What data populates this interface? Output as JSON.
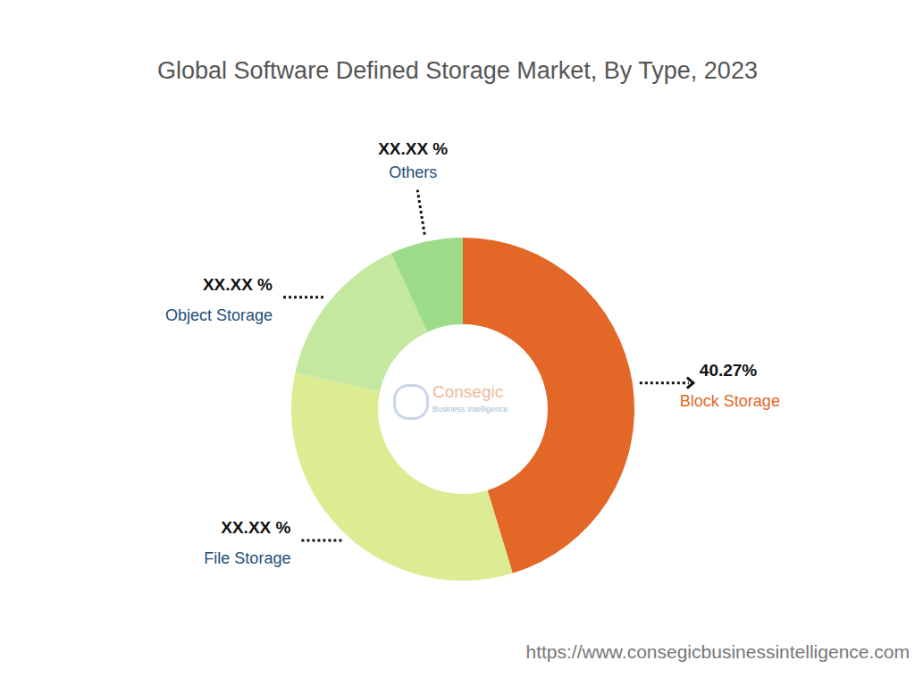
{
  "chart_data": {
    "type": "pie",
    "title": "Global Software Defined Storage Market, By Type, 2023",
    "categories": [
      "Block Storage",
      "File Storage",
      "Object Storage",
      "Others"
    ],
    "values": [
      40.27,
      29.4,
      13.1,
      6.1
    ],
    "value_labels": [
      "40.27%",
      "XX.XX %",
      "XX.XX %",
      "XX.XX %"
    ],
    "colors": [
      "#e36726",
      "#dbec93",
      "#c4e8a0",
      "#9cdb8a"
    ],
    "data_labels": true,
    "annotations": [
      "Consegic",
      "Business Intelligence",
      "https://www.consegicbusinessintelligence.com"
    ]
  }
}
